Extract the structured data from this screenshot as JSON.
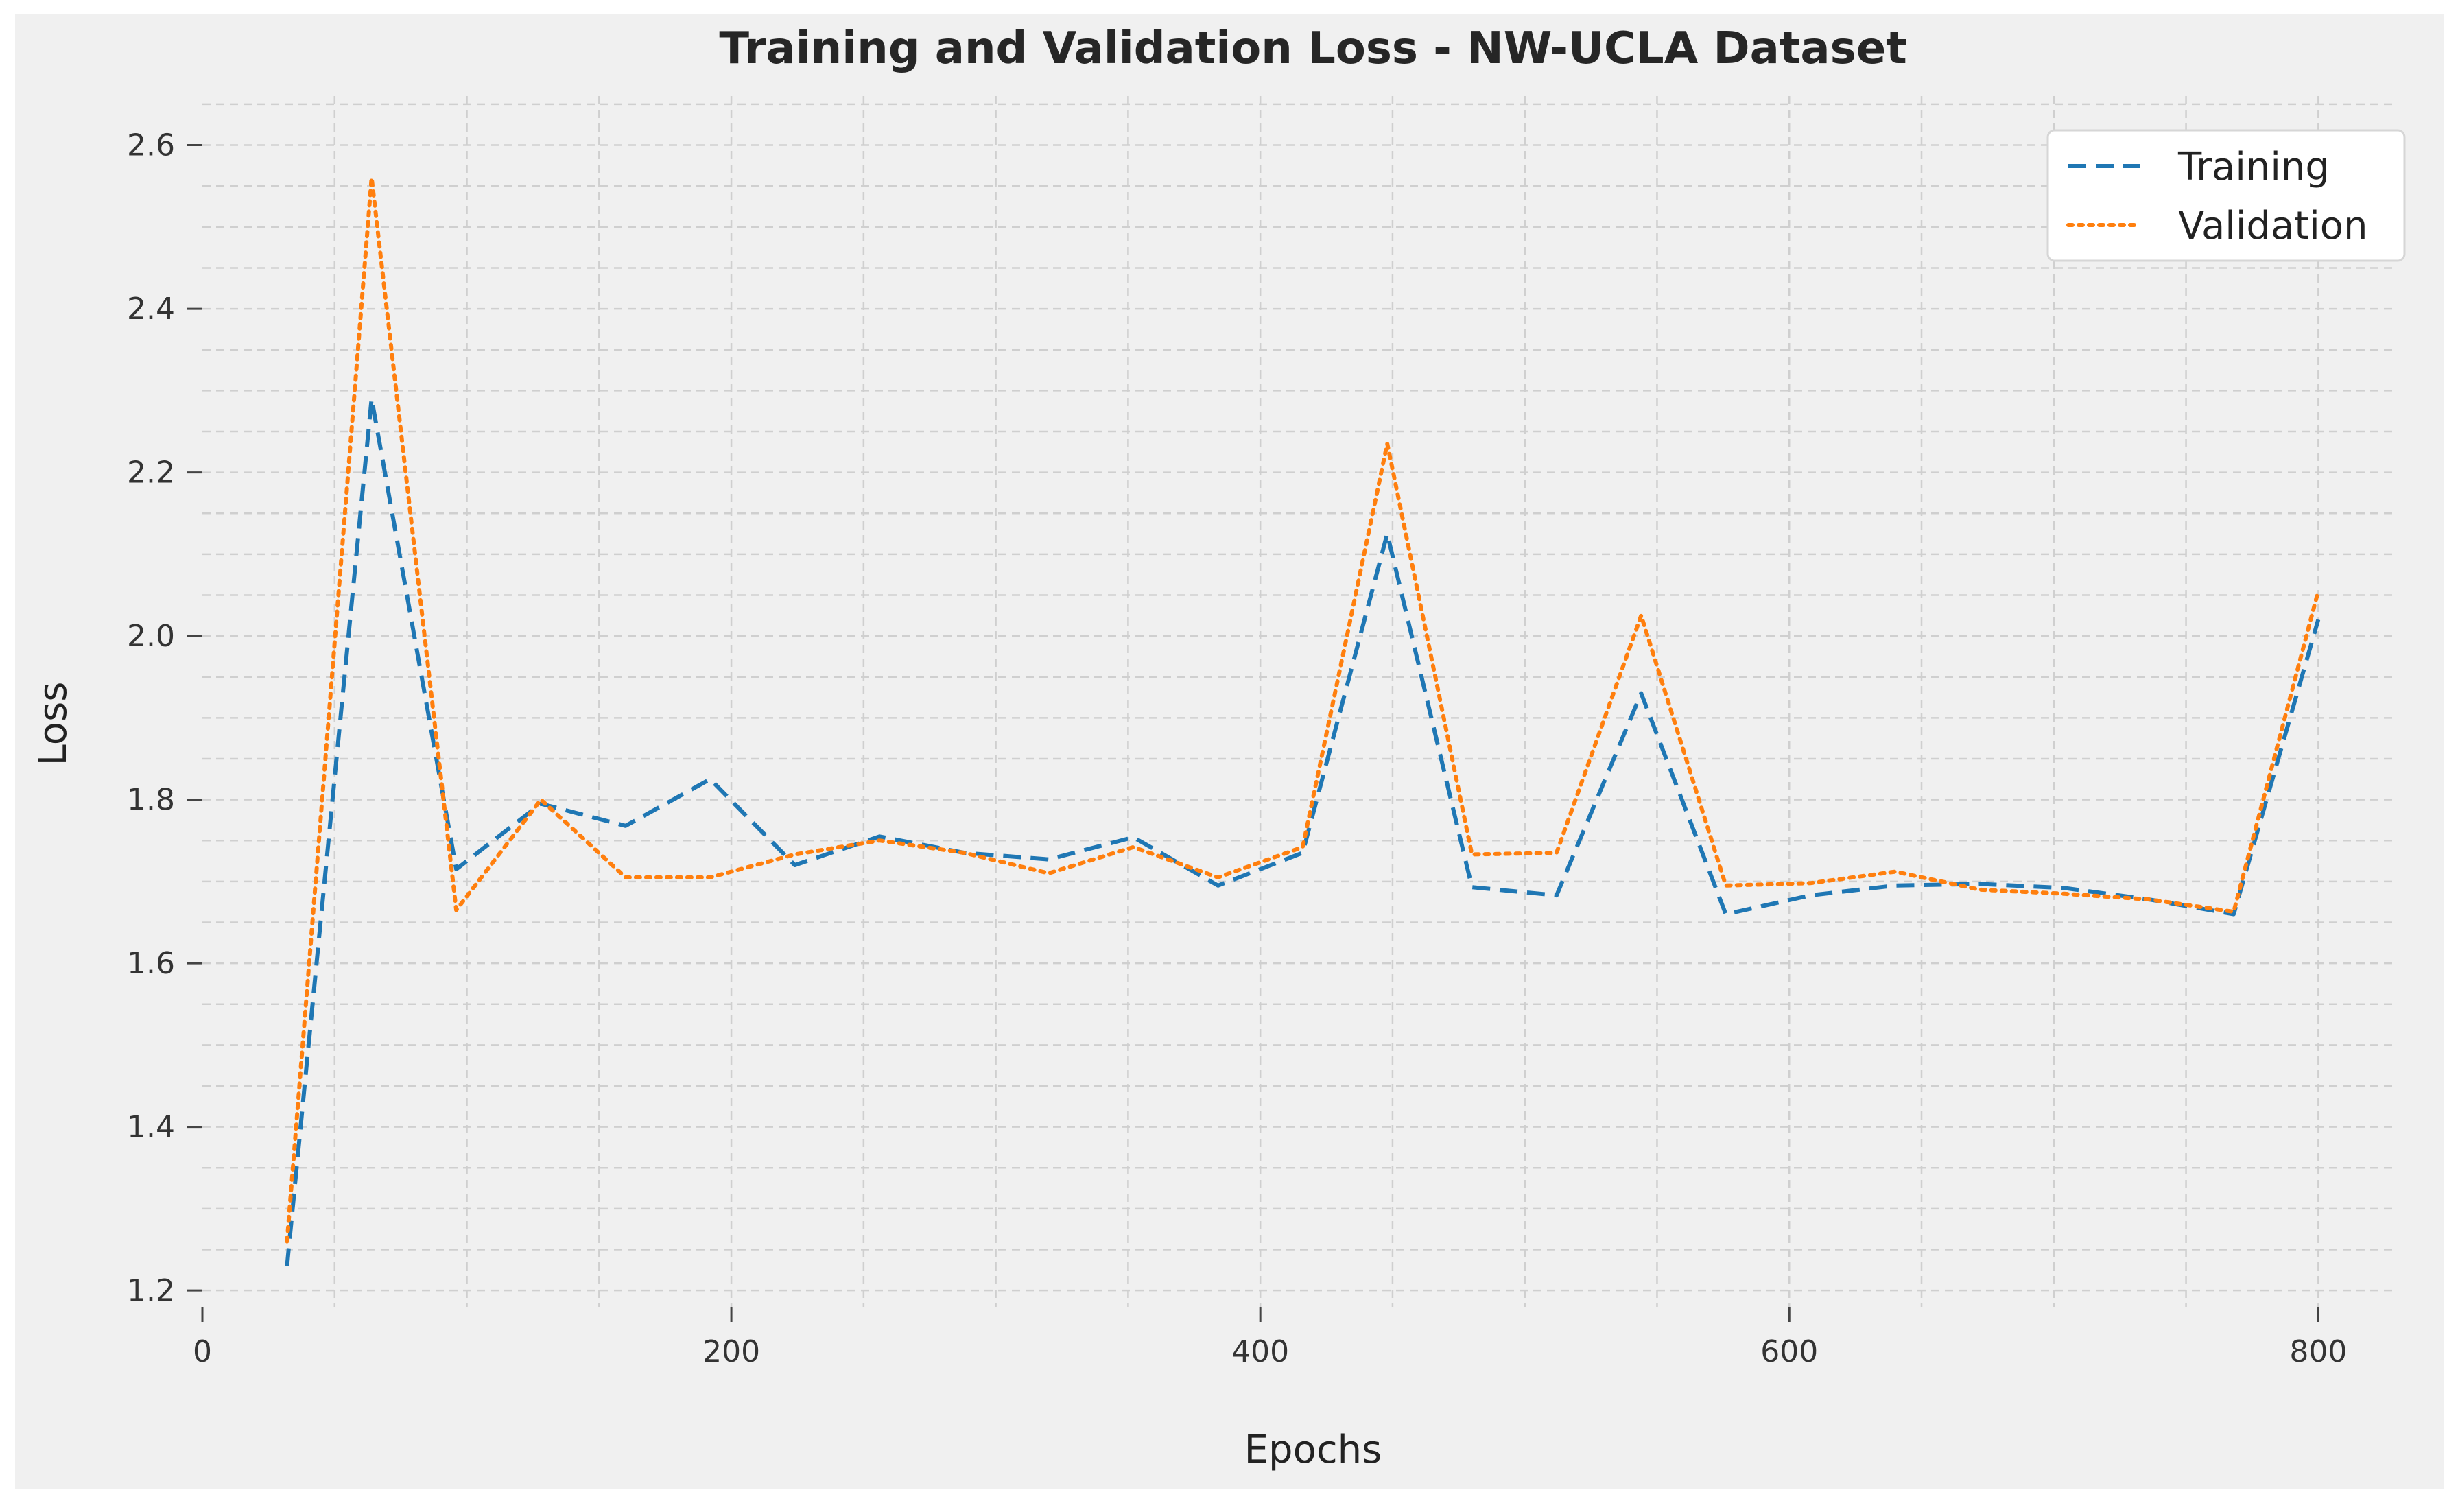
{
  "chart_data": {
    "type": "line",
    "title": "Training and Validation Loss - NW-UCLA Dataset",
    "xlabel": "Epochs",
    "ylabel": "Loss",
    "xlim": [
      0,
      830
    ],
    "ylim": [
      1.18,
      2.66
    ],
    "x_ticks": [
      0,
      200,
      400,
      600,
      800
    ],
    "y_ticks": [
      1.2,
      1.4,
      1.6,
      1.8,
      2.0,
      2.2,
      2.4,
      2.6
    ],
    "x_tick_labels": [
      "0",
      "200",
      "400",
      "600",
      "800"
    ],
    "y_tick_labels": [
      "1.2",
      "1.4",
      "1.6",
      "1.8",
      "2.0",
      "2.2",
      "2.4",
      "2.6"
    ],
    "grid": true,
    "legend_position": "top-right",
    "background_color": "#f0f0f0",
    "x": [
      32,
      64,
      96,
      128,
      160,
      192,
      224,
      256,
      288,
      320,
      352,
      384,
      416,
      448,
      480,
      512,
      544,
      576,
      608,
      640,
      672,
      704,
      736,
      768,
      800
    ],
    "series": [
      {
        "name": "Training",
        "color": "#1f77b4",
        "dash": "dashed",
        "values": [
          1.23,
          2.29,
          1.715,
          1.795,
          1.768,
          1.825,
          1.72,
          1.755,
          1.735,
          1.727,
          1.754,
          1.695,
          1.735,
          2.125,
          1.693,
          1.683,
          1.93,
          1.66,
          1.683,
          1.695,
          1.697,
          1.692,
          1.678,
          1.66,
          2.02
        ]
      },
      {
        "name": "Validation",
        "color": "#ff7f0e",
        "dash": "dotted",
        "values": [
          1.26,
          2.56,
          1.665,
          1.8,
          1.705,
          1.705,
          1.733,
          1.75,
          1.735,
          1.71,
          1.742,
          1.705,
          1.742,
          2.235,
          1.733,
          1.735,
          2.025,
          1.695,
          1.698,
          1.712,
          1.69,
          1.685,
          1.678,
          1.663,
          2.055
        ]
      }
    ]
  }
}
